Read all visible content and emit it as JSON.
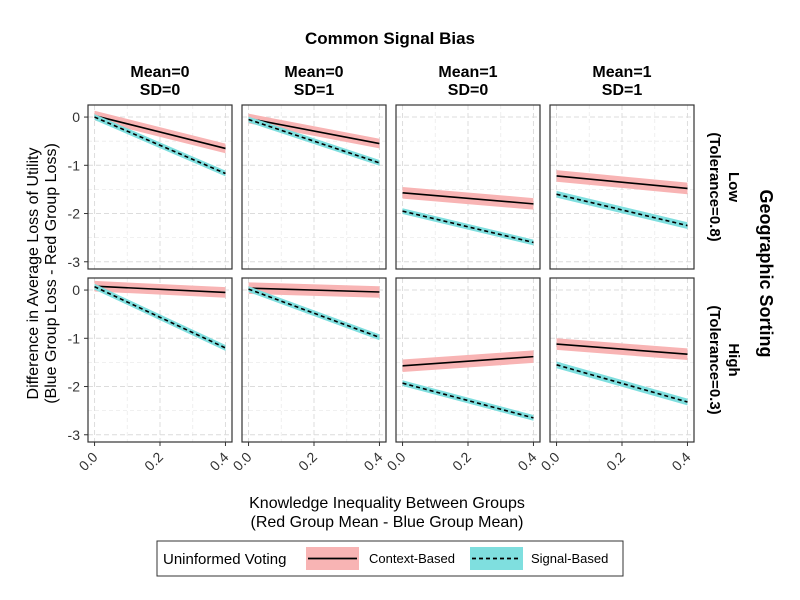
{
  "chart_data": {
    "type": "line",
    "title": "Common Signal Bias",
    "xlabel": [
      "Knowledge Inequality Between Groups",
      "(Red Group Mean - Blue Group Mean)"
    ],
    "ylabel": [
      "Difference in Average Loss of Utility",
      "(Blue Group Loss - Red Group Loss)"
    ],
    "row_strip_title": "Geographic Sorting",
    "columns": [
      {
        "label": [
          "Mean=0",
          "SD=0"
        ]
      },
      {
        "label": [
          "Mean=0",
          "SD=1"
        ]
      },
      {
        "label": [
          "Mean=1",
          "SD=0"
        ]
      },
      {
        "label": [
          "Mean=1",
          "SD=1"
        ]
      }
    ],
    "rows": [
      {
        "label": [
          "Low",
          "(Tolerance=0.8)"
        ]
      },
      {
        "label": [
          "High",
          "(Tolerance=0.3)"
        ]
      }
    ],
    "xlim": [
      -0.02,
      0.42
    ],
    "ylim": [
      -3.15,
      0.25
    ],
    "x_ticks": [
      0.0,
      0.2,
      0.4
    ],
    "x_tick_labels": [
      "0.0",
      "0.2",
      "0.4"
    ],
    "y_ticks": [
      0,
      -1,
      -2,
      -3
    ],
    "y_tick_labels": [
      "0",
      "-1",
      "-2",
      "-3"
    ],
    "grid": true,
    "legend": {
      "title": "Uninformed Voting",
      "position": "bottom",
      "entries": [
        {
          "label": "Context-Based",
          "line_style": "solid",
          "fill": "#F8B4B4"
        },
        {
          "label": "Signal-Based",
          "line_style": "dashed",
          "fill": "#7FDFDF"
        }
      ]
    },
    "x": [
      0.0,
      0.4
    ],
    "panels": [
      {
        "row": 0,
        "col": 0,
        "series": [
          {
            "legend_entry": 0,
            "y": [
              0.03,
              -0.65
            ],
            "band": 0.1
          },
          {
            "legend_entry": 1,
            "y": [
              0.0,
              -1.17
            ],
            "band": 0.06
          }
        ]
      },
      {
        "row": 0,
        "col": 1,
        "series": [
          {
            "legend_entry": 0,
            "y": [
              -0.03,
              -0.55
            ],
            "band": 0.1
          },
          {
            "legend_entry": 1,
            "y": [
              -0.05,
              -0.95
            ],
            "band": 0.06
          }
        ]
      },
      {
        "row": 0,
        "col": 2,
        "series": [
          {
            "legend_entry": 0,
            "y": [
              -1.57,
              -1.8
            ],
            "band": 0.12
          },
          {
            "legend_entry": 1,
            "y": [
              -1.95,
              -2.6
            ],
            "band": 0.06
          }
        ]
      },
      {
        "row": 0,
        "col": 3,
        "series": [
          {
            "legend_entry": 0,
            "y": [
              -1.22,
              -1.48
            ],
            "band": 0.12
          },
          {
            "legend_entry": 1,
            "y": [
              -1.6,
              -2.25
            ],
            "band": 0.07
          }
        ]
      },
      {
        "row": 1,
        "col": 0,
        "series": [
          {
            "legend_entry": 0,
            "y": [
              0.08,
              -0.05
            ],
            "band": 0.11
          },
          {
            "legend_entry": 1,
            "y": [
              0.07,
              -1.2
            ],
            "band": 0.06
          }
        ]
      },
      {
        "row": 1,
        "col": 1,
        "series": [
          {
            "legend_entry": 0,
            "y": [
              0.04,
              -0.04
            ],
            "band": 0.12
          },
          {
            "legend_entry": 1,
            "y": [
              0.02,
              -0.98
            ],
            "band": 0.06
          }
        ]
      },
      {
        "row": 1,
        "col": 2,
        "series": [
          {
            "legend_entry": 0,
            "y": [
              -1.57,
              -1.38
            ],
            "band": 0.13
          },
          {
            "legend_entry": 1,
            "y": [
              -1.93,
              -2.65
            ],
            "band": 0.06
          }
        ]
      },
      {
        "row": 1,
        "col": 3,
        "series": [
          {
            "legend_entry": 0,
            "y": [
              -1.12,
              -1.33
            ],
            "band": 0.12
          },
          {
            "legend_entry": 1,
            "y": [
              -1.55,
              -2.32
            ],
            "band": 0.07
          }
        ]
      }
    ]
  }
}
